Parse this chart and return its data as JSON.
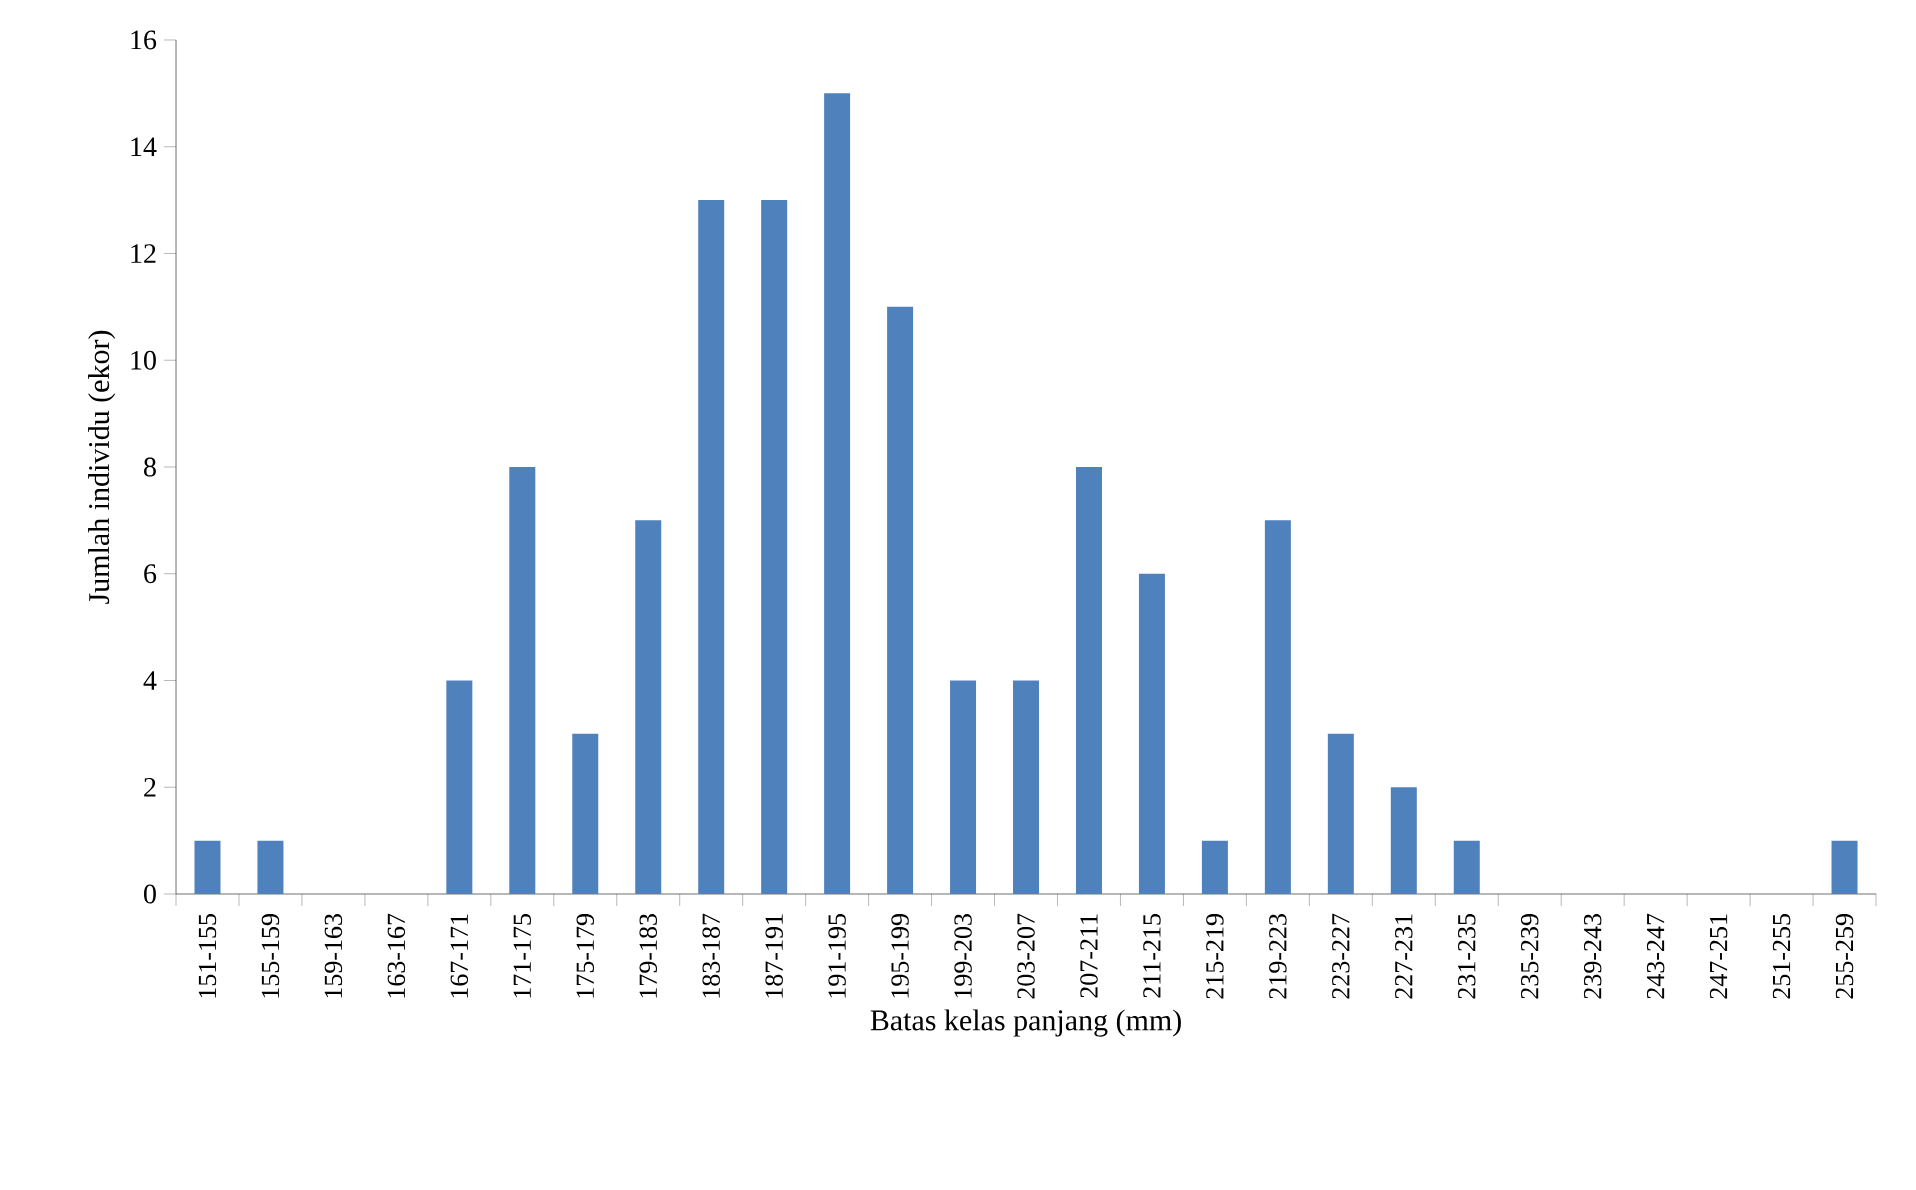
{
  "chart_data": {
    "type": "bar",
    "xlabel": "Batas kelas panjang (mm)",
    "ylabel": "Jumlah individu (ekor)",
    "categories": [
      "151-155",
      "155-159",
      "159-163",
      "163-167",
      "167-171",
      "171-175",
      "175-179",
      "179-183",
      "183-187",
      "187-191",
      "191-195",
      "195-199",
      "199-203",
      "203-207",
      "207-211",
      "211-215",
      "215-219",
      "219-223",
      "223-227",
      "227-231",
      "231-235",
      "235-239",
      "239-243",
      "243-247",
      "247-251",
      "251-255",
      "255-259"
    ],
    "values": [
      1,
      1,
      0,
      0,
      4,
      8,
      3,
      7,
      13,
      13,
      15,
      11,
      4,
      4,
      8,
      6,
      1,
      7,
      3,
      2,
      1,
      0,
      0,
      0,
      0,
      0,
      1
    ],
    "color": "#4f81bd",
    "ylim": [
      0,
      16
    ],
    "yticks": [
      0,
      2,
      4,
      6,
      8,
      10,
      12,
      14,
      16
    ]
  }
}
